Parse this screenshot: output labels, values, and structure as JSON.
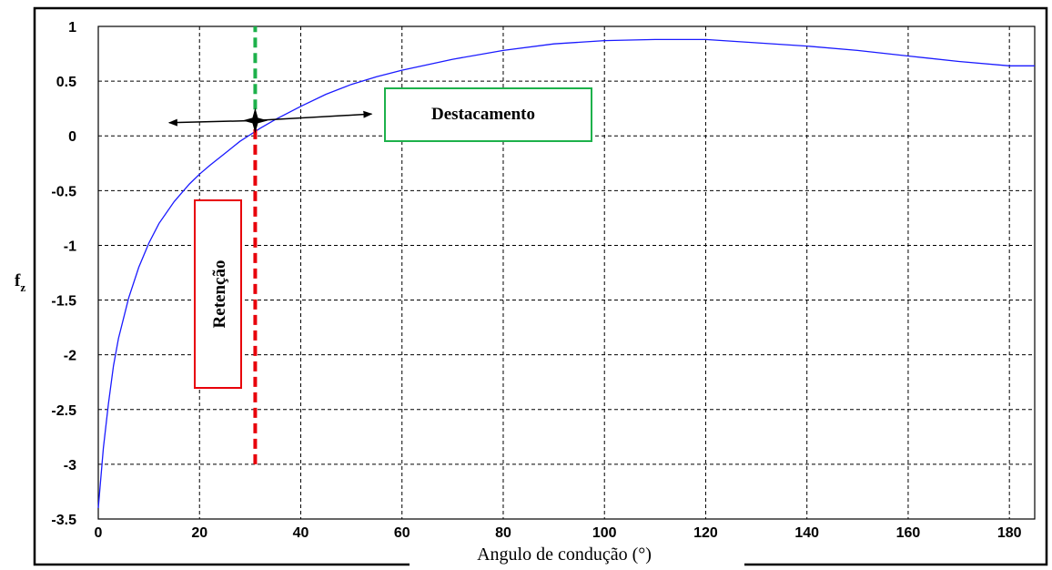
{
  "chart_data": {
    "type": "line",
    "xlabel": "Angulo de condução (°)",
    "ylabel": "f",
    "ylabel_subscript": "z",
    "xlim": [
      0,
      185
    ],
    "ylim": [
      -3.5,
      1
    ],
    "x_ticks": [
      0,
      20,
      40,
      60,
      80,
      100,
      120,
      140,
      160,
      180
    ],
    "x_tick_labels": [
      "0",
      "20",
      "40",
      "60",
      "80",
      "100",
      "120",
      "140",
      "160",
      "180"
    ],
    "y_ticks": [
      1,
      0.5,
      0,
      -0.5,
      -1,
      -1.5,
      -2,
      -2.5,
      -3,
      -3.5
    ],
    "y_tick_labels": [
      "1",
      "0.5",
      "0",
      "-0.5",
      "-1",
      "-1.5",
      "-2",
      "-2.5",
      "-3",
      "-3.5"
    ],
    "grid": true,
    "grid_style": "dashed",
    "series": [
      {
        "color": "#1a1aff",
        "x": [
          0,
          1,
          2,
          3,
          4,
          6,
          8,
          10,
          12,
          15,
          18,
          20,
          22,
          25,
          28,
          30,
          32,
          35,
          40,
          45,
          50,
          55,
          60,
          70,
          80,
          90,
          100,
          110,
          120,
          130,
          140,
          150,
          160,
          170,
          180,
          185
        ],
        "y": [
          -3.4,
          -2.85,
          -2.45,
          -2.1,
          -1.85,
          -1.48,
          -1.2,
          -0.98,
          -0.8,
          -0.6,
          -0.44,
          -0.35,
          -0.27,
          -0.16,
          -0.05,
          0.01,
          0.07,
          0.15,
          0.27,
          0.38,
          0.47,
          0.54,
          0.6,
          0.7,
          0.78,
          0.84,
          0.87,
          0.88,
          0.88,
          0.85,
          0.82,
          0.78,
          0.73,
          0.68,
          0.64,
          0.64
        ]
      }
    ],
    "markers": {
      "vertical_line_x": 31,
      "retention_y": [
        -3.0,
        0.1
      ],
      "detachment_y": [
        0.1,
        1.0
      ],
      "retention_color": "#e8000a",
      "detachment_color": "#1db14b",
      "cross_point": [
        31,
        0.14
      ],
      "arrow_left_to": [
        14,
        0.12
      ],
      "arrow_right_to": [
        54,
        0.2
      ]
    },
    "annotations": {
      "retention_label": "Retenção",
      "retention_box_color": "#e8000a",
      "detachment_label": "Destacamento",
      "detachment_box_color": "#1db14b"
    }
  }
}
